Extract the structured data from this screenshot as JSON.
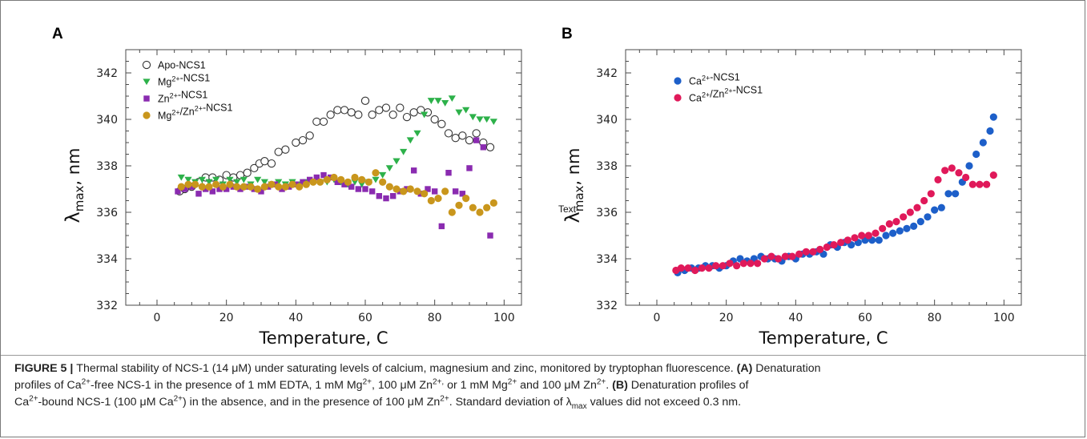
{
  "chart_data": [
    {
      "panel": "A",
      "type": "scatter",
      "xlabel": "Temperature, C",
      "ylabel_main": "λ",
      "ylabel_sub": "max",
      "ylabel_unit": ", nm",
      "ylabel_prefix": "",
      "xlim": [
        -9,
        105
      ],
      "ylim": [
        332,
        343
      ],
      "xticks": [
        0,
        20,
        40,
        60,
        80,
        100
      ],
      "yticks": [
        332,
        334,
        336,
        338,
        340,
        342
      ],
      "grid": false,
      "legend_position": "top-left",
      "series": [
        {
          "name": "Apo-NCS1",
          "marker": "open-circle",
          "color": "#333333",
          "x": [
            6.5,
            8.0,
            10.0,
            12.0,
            14.0,
            16.0,
            18.0,
            20.0,
            22.0,
            24.0,
            26.0,
            28.0,
            29.5,
            31.0,
            33.0,
            35.0,
            37.0,
            40.0,
            42.0,
            44.0,
            46.0,
            48.0,
            50.0,
            52.0,
            54.0,
            56.0,
            58.0,
            60.0,
            62.0,
            64.0,
            66.0,
            68.0,
            70.0,
            72.0,
            74.0,
            76.0,
            78.0,
            80.0,
            82.0,
            84.0,
            86.0,
            88.0,
            90.0,
            92.0,
            94.0,
            96.0
          ],
          "y": [
            336.9,
            337.0,
            337.1,
            337.3,
            337.5,
            337.5,
            337.4,
            337.6,
            337.5,
            337.6,
            337.7,
            337.9,
            338.1,
            338.2,
            338.1,
            338.6,
            338.7,
            339.0,
            339.1,
            339.3,
            339.9,
            339.9,
            340.2,
            340.4,
            340.4,
            340.3,
            340.2,
            340.8,
            340.2,
            340.4,
            340.5,
            340.2,
            340.5,
            340.1,
            340.3,
            340.4,
            340.3,
            340.0,
            339.8,
            339.4,
            339.2,
            339.3,
            339.1,
            339.4,
            339.0,
            338.8
          ]
        },
        {
          "name": "Mg²⁺-NCS1",
          "marker": "triangle-down",
          "color": "#2db14a",
          "x": [
            7,
            9,
            11,
            13,
            15,
            17,
            19,
            21,
            23,
            25,
            27,
            29,
            31,
            33,
            35,
            37,
            39,
            41,
            43,
            45,
            47,
            49,
            51,
            53,
            55,
            57,
            59,
            61,
            63,
            65,
            67,
            69,
            71,
            73,
            75,
            77,
            79,
            81,
            83,
            85,
            87,
            89,
            91,
            93,
            95,
            97
          ],
          "y": [
            337.5,
            337.4,
            337.3,
            337.4,
            337.3,
            337.4,
            337.2,
            337.4,
            337.3,
            337.4,
            337.2,
            337.4,
            337.3,
            337.2,
            337.3,
            337.2,
            337.3,
            337.2,
            337.3,
            337.3,
            337.3,
            337.3,
            337.4,
            337.3,
            337.2,
            337.3,
            337.2,
            337.3,
            337.4,
            337.6,
            337.9,
            338.2,
            338.6,
            339.1,
            339.4,
            340.2,
            340.8,
            340.8,
            340.7,
            340.9,
            340.3,
            340.4,
            340.1,
            340.0,
            340.0,
            339.9
          ]
        },
        {
          "name": "Zn²⁺-NCS1",
          "marker": "square",
          "color": "#8a2bb0",
          "x": [
            6,
            8,
            10,
            12,
            14,
            16,
            18,
            20,
            22,
            24,
            26,
            28,
            30,
            32,
            34,
            36,
            38,
            40,
            42,
            44,
            46,
            48,
            50,
            52,
            54,
            56,
            58,
            60,
            62,
            64,
            66,
            68,
            70,
            72,
            74,
            76,
            78,
            80,
            82,
            84,
            86,
            88,
            90,
            92,
            94,
            96
          ],
          "y": [
            336.9,
            337.0,
            337.1,
            336.8,
            337.0,
            336.9,
            337.0,
            337.0,
            337.1,
            337.0,
            337.1,
            337.0,
            336.9,
            337.1,
            337.2,
            337.0,
            337.1,
            337.2,
            337.3,
            337.4,
            337.5,
            337.6,
            337.5,
            337.3,
            337.2,
            337.1,
            337.0,
            337.0,
            336.9,
            336.7,
            336.6,
            336.7,
            336.9,
            337.0,
            337.8,
            336.8,
            337.0,
            336.9,
            335.4,
            337.7,
            336.9,
            336.8,
            337.9,
            339.1,
            338.8,
            335.0
          ]
        },
        {
          "name": "Mg²⁺/Zn²⁺-NCS1",
          "marker": "circle",
          "color": "#c9961c",
          "x": [
            7,
            9,
            11,
            13,
            15,
            17,
            19,
            21,
            23,
            25,
            27,
            29,
            31,
            33,
            35,
            37,
            39,
            41,
            43,
            45,
            47,
            49,
            51,
            53,
            55,
            57,
            59,
            61,
            63,
            65,
            67,
            69,
            71,
            73,
            75,
            77,
            79,
            81,
            83,
            85,
            87,
            89,
            91,
            93,
            95,
            97
          ],
          "y": [
            337.1,
            337.2,
            337.2,
            337.1,
            337.1,
            337.2,
            337.1,
            337.2,
            337.1,
            337.1,
            337.1,
            337.0,
            337.1,
            337.2,
            337.1,
            337.1,
            337.2,
            337.1,
            337.2,
            337.3,
            337.3,
            337.4,
            337.5,
            337.4,
            337.3,
            337.5,
            337.4,
            337.3,
            337.7,
            337.3,
            337.1,
            337.0,
            336.9,
            337.0,
            336.9,
            336.8,
            336.5,
            336.6,
            336.9,
            336.0,
            336.3,
            336.6,
            336.2,
            336.0,
            336.2,
            336.4
          ]
        }
      ]
    },
    {
      "panel": "B",
      "type": "scatter",
      "xlabel": "Temperature, C",
      "ylabel_main": "λ",
      "ylabel_sub": "max",
      "ylabel_unit": ", nm",
      "ylabel_prefix": "Text",
      "xlim": [
        -9,
        105
      ],
      "ylim": [
        332,
        343
      ],
      "xticks": [
        0,
        20,
        40,
        60,
        80,
        100
      ],
      "yticks": [
        332,
        334,
        336,
        338,
        340,
        342
      ],
      "grid": false,
      "legend_position": "top-left",
      "series": [
        {
          "name": "Ca²⁺-NCS1",
          "marker": "circle",
          "color": "#1d5fc9",
          "x": [
            6,
            8,
            10,
            12,
            14,
            16,
            18,
            20,
            22,
            24,
            26,
            28,
            30,
            32,
            34,
            36,
            38,
            40,
            42,
            44,
            46,
            48,
            50,
            52,
            54,
            56,
            58,
            60,
            62,
            64,
            66,
            68,
            70,
            72,
            74,
            76,
            78,
            80,
            82,
            84,
            86,
            88,
            90,
            92,
            94,
            96,
            97
          ],
          "y": [
            333.4,
            333.5,
            333.6,
            333.6,
            333.7,
            333.7,
            333.6,
            333.7,
            333.9,
            334.0,
            333.9,
            334.0,
            334.1,
            334.0,
            334.0,
            333.9,
            334.1,
            334.0,
            334.2,
            334.2,
            334.3,
            334.2,
            334.6,
            334.5,
            334.7,
            334.6,
            334.7,
            334.8,
            334.8,
            334.8,
            335.0,
            335.1,
            335.2,
            335.3,
            335.4,
            335.6,
            335.8,
            336.1,
            336.2,
            336.8,
            336.8,
            337.3,
            338.0,
            338.5,
            339.0,
            339.5,
            340.1
          ]
        },
        {
          "name": "Ca²⁺/Zn²⁺-NCS1",
          "marker": "circle",
          "color": "#e0195a",
          "x": [
            5.5,
            7,
            9,
            11,
            13,
            15,
            17,
            19,
            21,
            23,
            25,
            27,
            29,
            31,
            33,
            35,
            37,
            39,
            41,
            43,
            45,
            47,
            49,
            51,
            53,
            55,
            57,
            59,
            61,
            63,
            65,
            67,
            69,
            71,
            73,
            75,
            77,
            79,
            81,
            83,
            85,
            87,
            89,
            91,
            93,
            95,
            97
          ],
          "y": [
            333.5,
            333.6,
            333.6,
            333.5,
            333.6,
            333.6,
            333.7,
            333.7,
            333.8,
            333.7,
            333.8,
            333.8,
            333.8,
            334.0,
            334.1,
            334.0,
            334.1,
            334.1,
            334.2,
            334.3,
            334.3,
            334.4,
            334.5,
            334.6,
            334.7,
            334.8,
            334.9,
            335.0,
            335.0,
            335.1,
            335.3,
            335.5,
            335.6,
            335.8,
            336.0,
            336.2,
            336.5,
            336.8,
            337.4,
            337.8,
            337.9,
            337.7,
            337.5,
            337.2,
            337.2,
            337.2,
            337.6
          ]
        }
      ]
    }
  ],
  "panels": {
    "a_letter": "A",
    "b_letter": "B"
  },
  "caption": {
    "lines": [
      [
        {
          "text": "FIGURE 5 | ",
          "bold": true
        },
        {
          "text": "Thermal stability of NCS-1 (14 μM) under saturating levels of calcium, magnesium and zinc, monitored by tryptophan fluorescence. "
        },
        {
          "text": "(A)",
          "bold": true
        },
        {
          "text": " Denaturation"
        }
      ],
      [
        {
          "text": "profiles of Ca"
        },
        {
          "text": "2+",
          "sup": true
        },
        {
          "text": "-free NCS-1 in the presence of 1 mM EDTA, 1 mM Mg"
        },
        {
          "text": "2+",
          "sup": true
        },
        {
          "text": ", 100 μM Zn"
        },
        {
          "text": "2+,",
          "sup": true
        },
        {
          "text": " or 1 mM Mg"
        },
        {
          "text": "2+",
          "sup": true
        },
        {
          "text": " and 100 μM Zn"
        },
        {
          "text": "2+",
          "sup": true
        },
        {
          "text": ". "
        },
        {
          "text": "(B)",
          "bold": true
        },
        {
          "text": " Denaturation profiles of"
        }
      ],
      [
        {
          "text": "Ca"
        },
        {
          "text": "2+",
          "sup": true
        },
        {
          "text": "-bound NCS-1 (100 μM Ca"
        },
        {
          "text": "2+",
          "sup": true
        },
        {
          "text": ") in the absence, and in the presence of 100 μM Zn"
        },
        {
          "text": "2+",
          "sup": true
        },
        {
          "text": ". Standard deviation of λ"
        },
        {
          "text": "max",
          "sub": true
        },
        {
          "text": " values did not exceed 0.3 nm."
        }
      ]
    ]
  }
}
